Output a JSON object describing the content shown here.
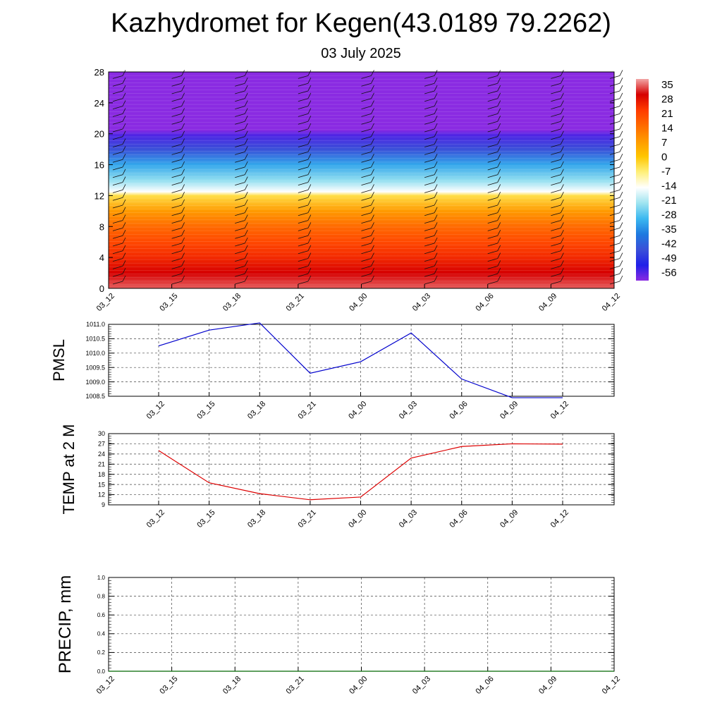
{
  "title": "Kazhydromet for Kegen(43.0189 79.2262)",
  "subtitle": "03 July 2025",
  "chart_data": [
    {
      "type": "heatmap",
      "title": "",
      "ylim": [
        0,
        28
      ],
      "yticks": [
        "0",
        "4",
        "8",
        "12",
        "16",
        "20",
        "24",
        "28"
      ],
      "xticks": [
        "03_12",
        "03_15",
        "03_18",
        "03_21",
        "04_00",
        "04_03",
        "04_06",
        "04_09",
        "04_12"
      ],
      "colorbar_labels": [
        "35",
        "28",
        "21",
        "14",
        "7",
        "0",
        "-7",
        "-14",
        "-21",
        "-28",
        "-35",
        "-42",
        "-49",
        "-56"
      ],
      "colorbar_colors": [
        "#f2a6a6",
        "#d60000",
        "#ff3a00",
        "#ff6a00",
        "#ff9a00",
        "#ffc600",
        "#fff07a",
        "#ffffff",
        "#9fe4f0",
        "#3cb8f0",
        "#1e7ae0",
        "#3a50d8",
        "#2020e8",
        "#8a2be2"
      ],
      "profile": [
        {
          "h": 0,
          "t": 32
        },
        {
          "h": 2,
          "t": 28
        },
        {
          "h": 4,
          "t": 23
        },
        {
          "h": 6,
          "t": 19
        },
        {
          "h": 8,
          "t": 14
        },
        {
          "h": 10,
          "t": 7
        },
        {
          "h": 12,
          "t": -4
        },
        {
          "h": 12.5,
          "t": -14
        },
        {
          "h": 14,
          "t": -22
        },
        {
          "h": 16,
          "t": -30
        },
        {
          "h": 18,
          "t": -42
        },
        {
          "h": 19.8,
          "t": -52
        },
        {
          "h": 20.5,
          "t": -56
        },
        {
          "h": 22,
          "t": -58
        },
        {
          "h": 28,
          "t": -60
        }
      ]
    },
    {
      "type": "line",
      "ylabel": "PMSL",
      "color": "#0000cc",
      "ylim": [
        1008.5,
        1011.0
      ],
      "yticks": [
        "1008.5",
        "1009.0",
        "1009.5",
        "1010.0",
        "1010.5",
        "1011.0"
      ],
      "categories": [
        "03_12",
        "03_15",
        "03_18",
        "03_21",
        "04_00",
        "04_03",
        "04_06",
        "04_09",
        "04_12"
      ],
      "values": [
        1010.25,
        1010.8,
        1011.05,
        1009.3,
        1009.7,
        1010.7,
        1009.1,
        1008.45,
        1008.45
      ]
    },
    {
      "type": "line",
      "ylabel": "TEMP at 2 M",
      "color": "#dd0000",
      "ylim": [
        9,
        30
      ],
      "yticks": [
        "9",
        "12",
        "15",
        "18",
        "21",
        "24",
        "27",
        "30"
      ],
      "categories": [
        "03_12",
        "03_15",
        "03_18",
        "03_21",
        "04_00",
        "04_03",
        "04_06",
        "04_09",
        "04_12"
      ],
      "values": [
        25.0,
        15.5,
        12.3,
        10.5,
        11.3,
        22.8,
        26.2,
        27.0,
        26.9
      ]
    },
    {
      "type": "line",
      "ylabel": "PRECIP, mm",
      "color": "#006600",
      "ylim": [
        0.0,
        1.0
      ],
      "yticks": [
        "0.0",
        "0.2",
        "0.4",
        "0.6",
        "0.8",
        "1.0"
      ],
      "categories": [
        "03_12",
        "03_15",
        "03_18",
        "03_21",
        "04_00",
        "04_03",
        "04_06",
        "04_09",
        "04_12"
      ],
      "values": [
        0,
        0,
        0,
        0,
        0,
        0,
        0,
        0,
        0
      ]
    }
  ]
}
